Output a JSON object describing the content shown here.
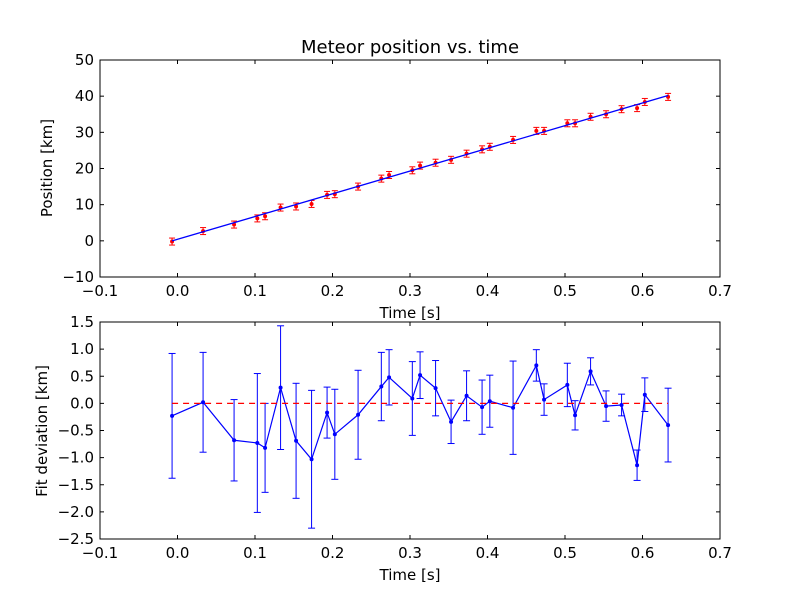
{
  "chart_data": [
    {
      "type": "scatter",
      "title": "Meteor position vs. time",
      "xlabel": "Time [s]",
      "ylabel": "Position [km]",
      "xlim": [
        -0.1,
        0.7
      ],
      "ylim": [
        -10,
        50
      ],
      "xticks": [
        -0.1,
        0.0,
        0.1,
        0.2,
        0.3,
        0.4,
        0.5,
        0.6,
        0.7
      ],
      "xtick_labels": [
        "−0.1",
        "0.0",
        "0.1",
        "0.2",
        "0.3",
        "0.4",
        "0.5",
        "0.6",
        "0.7"
      ],
      "yticks": [
        -10,
        0,
        10,
        20,
        30,
        40,
        50
      ],
      "ytick_labels": [
        "−10",
        "0",
        "10",
        "20",
        "30",
        "40",
        "50"
      ],
      "grid": false,
      "series": [
        {
          "kind": "errorbar-points",
          "color": "#ff0000",
          "x": [
            -0.007,
            0.033,
            0.073,
            0.103,
            0.113,
            0.133,
            0.153,
            0.173,
            0.193,
            0.203,
            0.233,
            0.263,
            0.273,
            0.303,
            0.313,
            0.333,
            0.353,
            0.373,
            0.393,
            0.403,
            0.433,
            0.463,
            0.473,
            0.503,
            0.513,
            0.533,
            0.553,
            0.573,
            0.593,
            0.603,
            0.633
          ],
          "y": [
            -0.2,
            2.7,
            4.5,
            6.2,
            6.8,
            9.2,
            9.5,
            10.2,
            12.7,
            12.9,
            15.0,
            17.2,
            18.2,
            19.5,
            20.8,
            21.6,
            22.4,
            24.1,
            25.3,
            26.0,
            27.9,
            30.4,
            30.4,
            32.5,
            32.5,
            34.3,
            35.0,
            36.4,
            36.7,
            38.4,
            39.8
          ]
        },
        {
          "kind": "fit-line",
          "color": "#0000ff",
          "x": [
            -0.007,
            0.633
          ],
          "y": [
            0.0,
            40.2
          ]
        }
      ]
    },
    {
      "type": "line",
      "xlabel": "Time [s]",
      "ylabel": "Fit deviation [km]",
      "xlim": [
        -0.1,
        0.7
      ],
      "ylim": [
        -2.5,
        1.5
      ],
      "xticks": [
        -0.1,
        0.0,
        0.1,
        0.2,
        0.3,
        0.4,
        0.5,
        0.6,
        0.7
      ],
      "xtick_labels": [
        "−0.1",
        "0.0",
        "0.1",
        "0.2",
        "0.3",
        "0.4",
        "0.5",
        "0.6",
        "0.7"
      ],
      "yticks": [
        -2.5,
        -2.0,
        -1.5,
        -1.0,
        -0.5,
        0.0,
        0.5,
        1.0,
        1.5
      ],
      "ytick_labels": [
        "−2.5",
        "−2.0",
        "−1.5",
        "−1.0",
        "−0.5",
        "0.0",
        "0.5",
        "1.0",
        "1.5"
      ],
      "grid": false,
      "series": [
        {
          "kind": "errorbar-line",
          "color": "#0000ff",
          "x": [
            -0.007,
            0.033,
            0.073,
            0.103,
            0.113,
            0.133,
            0.153,
            0.173,
            0.193,
            0.203,
            0.233,
            0.263,
            0.273,
            0.303,
            0.313,
            0.333,
            0.353,
            0.373,
            0.393,
            0.403,
            0.433,
            0.463,
            0.473,
            0.503,
            0.513,
            0.533,
            0.553,
            0.573,
            0.593,
            0.603,
            0.633
          ],
          "y": [
            -0.23,
            0.02,
            -0.68,
            -0.73,
            -0.82,
            0.29,
            -0.69,
            -1.03,
            -0.17,
            -0.57,
            -0.21,
            0.31,
            0.48,
            0.09,
            0.52,
            0.28,
            -0.34,
            0.14,
            -0.07,
            0.04,
            -0.08,
            0.7,
            0.07,
            0.34,
            -0.22,
            0.59,
            -0.05,
            -0.03,
            -1.14,
            0.16,
            -0.4
          ],
          "err": [
            1.15,
            0.92,
            0.75,
            1.28,
            0.82,
            1.14,
            1.06,
            1.27,
            0.47,
            0.83,
            0.82,
            0.63,
            0.51,
            0.68,
            0.43,
            0.51,
            0.4,
            0.46,
            0.5,
            0.48,
            0.86,
            0.29,
            0.29,
            0.4,
            0.27,
            0.25,
            0.28,
            0.2,
            0.28,
            0.31,
            0.68
          ]
        },
        {
          "kind": "reference-dashed",
          "color": "#ff0000",
          "x": [
            -0.007,
            0.633
          ],
          "y": [
            0.0,
            0.0
          ]
        }
      ]
    }
  ]
}
